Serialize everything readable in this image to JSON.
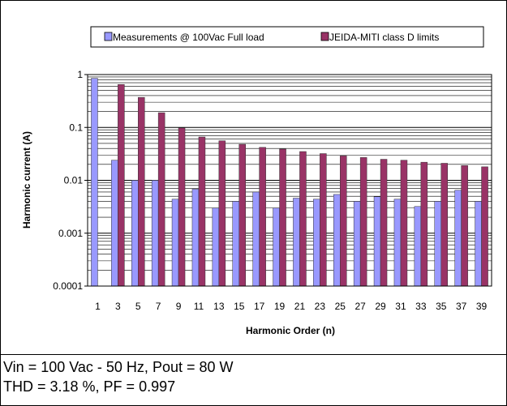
{
  "chart_data": {
    "type": "bar",
    "title": "",
    "xlabel": "Harmonic Order (n)",
    "ylabel": "Harmonic current (A)",
    "y_scale": "log",
    "ylim": [
      0.0001,
      1
    ],
    "y_ticks": [
      {
        "value": 0.0001,
        "label": "0.0001"
      },
      {
        "value": 0.001,
        "label": "0.001"
      },
      {
        "value": 0.01,
        "label": "0.01"
      },
      {
        "value": 0.1,
        "label": "0.1"
      },
      {
        "value": 1,
        "label": "1"
      }
    ],
    "grid": true,
    "legend_position": "top",
    "categories": [
      "1",
      "3",
      "5",
      "7",
      "9",
      "11",
      "13",
      "15",
      "17",
      "19",
      "21",
      "23",
      "25",
      "27",
      "29",
      "31",
      "33",
      "35",
      "37",
      "39"
    ],
    "series": [
      {
        "name": "Measurements @ 100Vac Full load",
        "color": "#9999FF",
        "values": [
          0.85,
          0.024,
          0.01,
          0.01,
          0.0044,
          0.0068,
          0.003,
          0.004,
          0.006,
          0.003,
          0.0046,
          0.0044,
          0.0054,
          0.004,
          0.0049,
          0.0044,
          0.0032,
          0.004,
          0.0065,
          0.004
        ]
      },
      {
        "name": "JEIDA-MITI class D limits",
        "color": "#993366",
        "values": [
          null,
          0.65,
          0.37,
          0.19,
          0.098,
          0.066,
          0.056,
          0.048,
          0.042,
          0.039,
          0.035,
          0.032,
          0.029,
          0.027,
          0.025,
          0.024,
          0.022,
          0.021,
          0.019,
          0.018
        ]
      }
    ]
  },
  "info": {
    "line1": "Vin = 100 Vac - 50 Hz,  Pout = 80 W",
    "line2": "THD = 3.18 %,  PF = 0.997"
  }
}
